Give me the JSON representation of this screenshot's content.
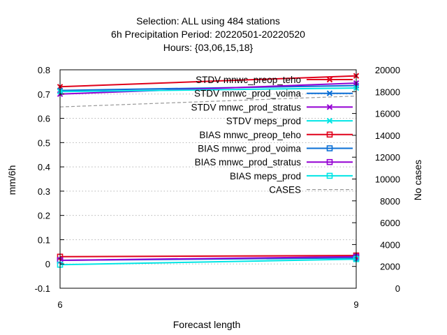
{
  "chart_data": {
    "type": "line",
    "title_lines": [
      "Selection: ALL using   484 stations",
      "6h Precipitation   Period: 20220501-20220520",
      "Hours: {03,06,15,18}"
    ],
    "xlabel": "Forecast length",
    "ylabel": "mm/6h",
    "y2label": "No cases",
    "x_ticks": [
      "6",
      "9"
    ],
    "xlim": [
      6,
      9
    ],
    "ylim": [
      -0.1,
      0.8
    ],
    "y_ticks": [
      "-0.1",
      "0",
      "0.1",
      "0.2",
      "0.3",
      "0.4",
      "0.5",
      "0.6",
      "0.7",
      "0.8"
    ],
    "y2lim": [
      0,
      20000
    ],
    "y2_ticks": [
      "0",
      "2000",
      "4000",
      "6000",
      "8000",
      "10000",
      "12000",
      "14000",
      "16000",
      "18000",
      "20000"
    ],
    "grid": true,
    "legend_position": "top-right",
    "series": [
      {
        "name": "STDV mnwc_preop_teho",
        "axis": "y",
        "color": "#e0001a",
        "marker": "x",
        "x": [
          6,
          9
        ],
        "y": [
          0.73,
          0.775
        ]
      },
      {
        "name": "STDV mnwc_prod_voima",
        "axis": "y",
        "color": "#0a6fd6",
        "marker": "x",
        "x": [
          6,
          9
        ],
        "y": [
          0.715,
          0.735
        ]
      },
      {
        "name": "STDV mnwc_prod_stratus",
        "axis": "y",
        "color": "#9400d3",
        "marker": "x",
        "x": [
          6,
          9
        ],
        "y": [
          0.7,
          0.745
        ]
      },
      {
        "name": "STDV meps_prod",
        "axis": "y",
        "color": "#00e5e5",
        "marker": "x",
        "x": [
          6,
          9
        ],
        "y": [
          0.71,
          0.725
        ]
      },
      {
        "name": "BIAS mnwc_preop_teho",
        "axis": "y",
        "color": "#e0001a",
        "marker": "square",
        "x": [
          6,
          9
        ],
        "y": [
          0.03,
          0.035
        ]
      },
      {
        "name": "BIAS mnwc_prod_voima",
        "axis": "y",
        "color": "#0a6fd6",
        "marker": "square",
        "x": [
          6,
          9
        ],
        "y": [
          0.015,
          0.025
        ]
      },
      {
        "name": "BIAS mnwc_prod_stratus",
        "axis": "y",
        "color": "#9400d3",
        "marker": "square",
        "x": [
          6,
          9
        ],
        "y": [
          0.015,
          0.03
        ]
      },
      {
        "name": "BIAS meps_prod",
        "axis": "y",
        "color": "#00e5e5",
        "marker": "square",
        "x": [
          6,
          9
        ],
        "y": [
          -0.003,
          0.02
        ]
      },
      {
        "name": "CASES",
        "axis": "y2",
        "color": "#999999",
        "marker": "none",
        "dashed": true,
        "x": [
          6,
          9
        ],
        "y": [
          16600,
          17600
        ]
      }
    ]
  }
}
